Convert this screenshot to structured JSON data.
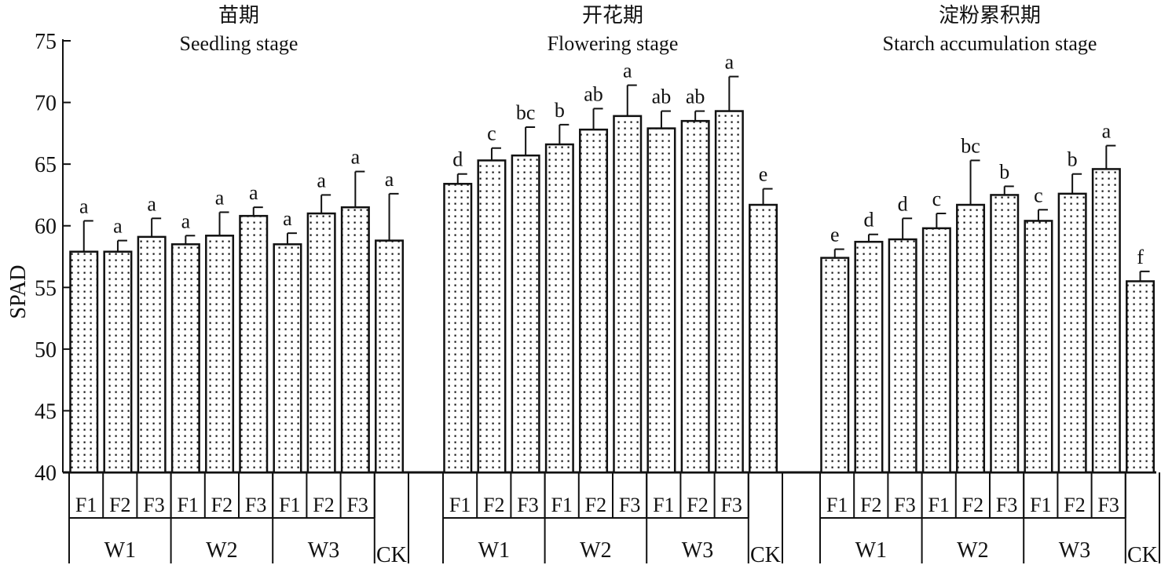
{
  "chart_data": {
    "type": "bar",
    "ylabel": "SPAD",
    "ylim": [
      40,
      75
    ],
    "yticks": [
      "40",
      "45",
      "50",
      "55",
      "60",
      "65",
      "70",
      "75"
    ],
    "panels": [
      {
        "title_cn": "苗期",
        "title_en": "Seedling stage",
        "groups": [
          "W1",
          "W2",
          "W3",
          "CK"
        ],
        "bars": [
          {
            "group": "W1",
            "level": "F1",
            "value": 57.9,
            "error": 2.5,
            "letter": "a"
          },
          {
            "group": "W1",
            "level": "F2",
            "value": 57.9,
            "error": 0.9,
            "letter": "a"
          },
          {
            "group": "W1",
            "level": "F3",
            "value": 59.1,
            "error": 1.5,
            "letter": "a"
          },
          {
            "group": "W2",
            "level": "F1",
            "value": 58.5,
            "error": 0.7,
            "letter": "a"
          },
          {
            "group": "W2",
            "level": "F2",
            "value": 59.2,
            "error": 1.9,
            "letter": "a"
          },
          {
            "group": "W2",
            "level": "F3",
            "value": 60.8,
            "error": 0.7,
            "letter": "a"
          },
          {
            "group": "W3",
            "level": "F1",
            "value": 58.5,
            "error": 0.9,
            "letter": "a"
          },
          {
            "group": "W3",
            "level": "F2",
            "value": 61.0,
            "error": 1.5,
            "letter": "a"
          },
          {
            "group": "W3",
            "level": "F3",
            "value": 61.5,
            "error": 2.9,
            "letter": "a"
          },
          {
            "group": "CK",
            "level": "",
            "value": 58.8,
            "error": 3.8,
            "letter": "a"
          }
        ]
      },
      {
        "title_cn": "开花期",
        "title_en": "Flowering stage",
        "groups": [
          "W1",
          "W2",
          "W3",
          "CK"
        ],
        "bars": [
          {
            "group": "W1",
            "level": "F1",
            "value": 63.4,
            "error": 0.8,
            "letter": "d"
          },
          {
            "group": "W1",
            "level": "F2",
            "value": 65.3,
            "error": 1.0,
            "letter": "c"
          },
          {
            "group": "W1",
            "level": "F3",
            "value": 65.7,
            "error": 2.3,
            "letter": "bc"
          },
          {
            "group": "W2",
            "level": "F1",
            "value": 66.6,
            "error": 1.6,
            "letter": "b"
          },
          {
            "group": "W2",
            "level": "F2",
            "value": 67.8,
            "error": 1.7,
            "letter": "ab"
          },
          {
            "group": "W2",
            "level": "F3",
            "value": 68.9,
            "error": 2.5,
            "letter": "a"
          },
          {
            "group": "W3",
            "level": "F1",
            "value": 67.9,
            "error": 1.4,
            "letter": "ab"
          },
          {
            "group": "W3",
            "level": "F2",
            "value": 68.5,
            "error": 0.8,
            "letter": "ab"
          },
          {
            "group": "W3",
            "level": "F3",
            "value": 69.3,
            "error": 2.8,
            "letter": "a"
          },
          {
            "group": "CK",
            "level": "",
            "value": 61.7,
            "error": 1.3,
            "letter": "e"
          }
        ]
      },
      {
        "title_cn": "淀粉累积期",
        "title_en": "Starch accumulation stage",
        "groups": [
          "W1",
          "W2",
          "W3",
          "CK"
        ],
        "bars": [
          {
            "group": "W1",
            "level": "F1",
            "value": 57.4,
            "error": 0.7,
            "letter": "e"
          },
          {
            "group": "W1",
            "level": "F2",
            "value": 58.7,
            "error": 0.6,
            "letter": "d"
          },
          {
            "group": "W1",
            "level": "F3",
            "value": 58.9,
            "error": 1.7,
            "letter": "d"
          },
          {
            "group": "W2",
            "level": "F1",
            "value": 59.8,
            "error": 1.2,
            "letter": "c"
          },
          {
            "group": "W2",
            "level": "F2",
            "value": 61.7,
            "error": 3.6,
            "letter": "bc"
          },
          {
            "group": "W2",
            "level": "F3",
            "value": 62.5,
            "error": 0.7,
            "letter": "b"
          },
          {
            "group": "W3",
            "level": "F1",
            "value": 60.4,
            "error": 0.9,
            "letter": "c"
          },
          {
            "group": "W3",
            "level": "F2",
            "value": 62.6,
            "error": 1.6,
            "letter": "b"
          },
          {
            "group": "W3",
            "level": "F3",
            "value": 64.6,
            "error": 1.9,
            "letter": "a"
          },
          {
            "group": "CK",
            "level": "",
            "value": 55.5,
            "error": 0.8,
            "letter": "f"
          }
        ]
      }
    ]
  }
}
